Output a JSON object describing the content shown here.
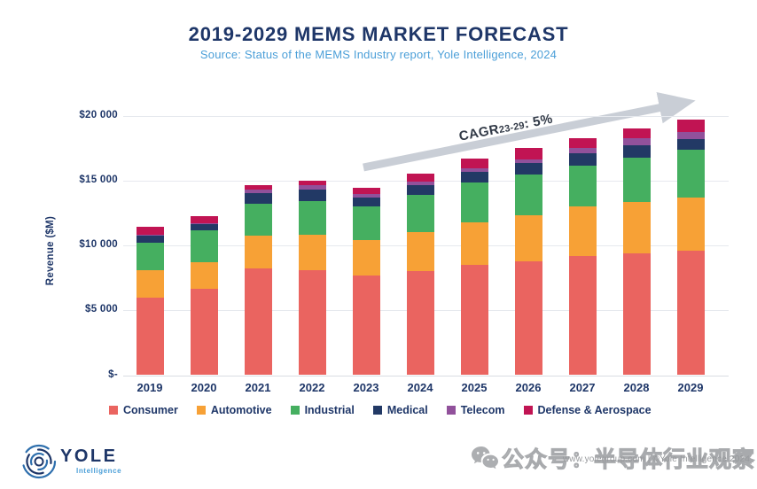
{
  "header": {
    "title": "2019-2029 MEMS MARKET FORECAST",
    "subtitle": "Source: Status of the MEMS Industry report, Yole Intelligence, 2024"
  },
  "chart_data": {
    "type": "bar",
    "stacked": true,
    "title": "2019-2029 MEMS MARKET FORECAST",
    "xlabel": "",
    "ylabel": "Revenue ($M)",
    "ylim": [
      0,
      22000
    ],
    "grid": true,
    "legend_position": "bottom",
    "categories": [
      "2019",
      "2020",
      "2021",
      "2022",
      "2023",
      "2024",
      "2025",
      "2026",
      "2027",
      "2028",
      "2029"
    ],
    "series": [
      {
        "name": "Consumer",
        "color": "#EA6460",
        "values": [
          6000,
          6700,
          8250,
          8100,
          7700,
          8050,
          8500,
          8800,
          9200,
          9400,
          9600
        ]
      },
      {
        "name": "Automotive",
        "color": "#F7A136",
        "values": [
          2100,
          2050,
          2500,
          2750,
          2750,
          3000,
          3300,
          3550,
          3800,
          4000,
          4100
        ]
      },
      {
        "name": "Industrial",
        "color": "#45AF60",
        "values": [
          2100,
          2400,
          2500,
          2600,
          2550,
          2850,
          3100,
          3150,
          3200,
          3400,
          3700
        ]
      },
      {
        "name": "Medical",
        "color": "#223965",
        "values": [
          550,
          500,
          800,
          900,
          700,
          750,
          800,
          900,
          900,
          950,
          800
        ]
      },
      {
        "name": "Telecom",
        "color": "#91519B",
        "values": [
          80,
          100,
          250,
          300,
          270,
          300,
          250,
          275,
          430,
          550,
          550
        ]
      },
      {
        "name": "Defense & Aerospace",
        "color": "#C11453",
        "values": [
          650,
          550,
          400,
          350,
          530,
          600,
          800,
          850,
          800,
          750,
          950
        ]
      }
    ],
    "totals": [
      11480,
      12300,
      14700,
      15000,
      14500,
      15550,
      16750,
      17525,
      18330,
      19050,
      19700
    ],
    "y_ticks": [
      {
        "label": "$20 000",
        "value": 20000
      },
      {
        "label": "$15 000",
        "value": 15000
      },
      {
        "label": "$10 000",
        "value": 10000
      },
      {
        "label": "$5 000",
        "value": 5000
      },
      {
        "label": "$-",
        "value": 0
      }
    ],
    "annotation": {
      "cagr_text": "CAGR",
      "cagr_sub": "23-29",
      "cagr_rest": ": 5%"
    }
  },
  "footer": {
    "logo": {
      "name": "YOLE",
      "sub": "Intelligence"
    },
    "watermark": "公众号：半导体行业观察",
    "credit": "www.yolegroup.com | ©Yole Intelligence 2024"
  },
  "colors": {
    "title": "#1E3668",
    "subtitle": "#4B9FD8",
    "axis_text": "#1E3668",
    "grid": "#E6E9EE",
    "arrow": "#C9CED6",
    "annotation": "#323A47",
    "watermark": "#A8AAAD"
  }
}
